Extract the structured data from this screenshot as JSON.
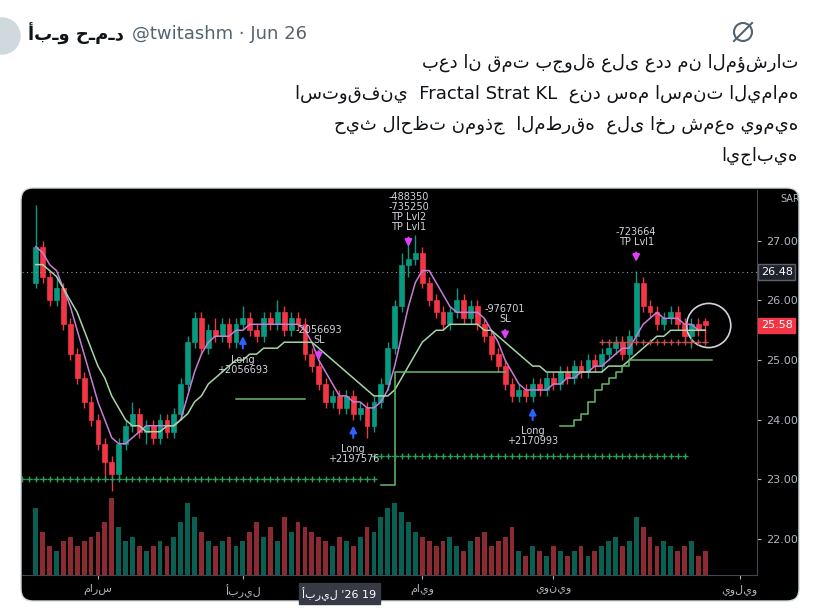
{
  "tweet": {
    "author": "أبـو حـمـد",
    "handle": "@twitashm · Jun 26",
    "text": [
      "بعد ان قمت بجولة على عدد من المؤشرات",
      "استوقفني  Fractal Strat KL  عند سهم اسمنت اليمامه",
      "حيث لاحظت نموذج  المطرقه  على اخر شمعه يوميه",
      "ايجابيه"
    ]
  },
  "chart_data": {
    "type": "candlestick",
    "unit_label": "SAR",
    "categories": [
      null,
      null,
      null,
      null,
      null,
      null,
      null,
      null,
      null,
      "مارس",
      null,
      null,
      null,
      null,
      null,
      null,
      null,
      null,
      null,
      null,
      null,
      null,
      null,
      null,
      null,
      null,
      null,
      null,
      null,
      null,
      "أبريل",
      null,
      null,
      null,
      null,
      null,
      null,
      null,
      null,
      null,
      null,
      null,
      null,
      null,
      null,
      null,
      null,
      null,
      null,
      null,
      null,
      null,
      null,
      null,
      null,
      null,
      "مايو",
      null,
      null,
      null,
      null,
      null,
      null,
      null,
      null,
      null,
      null,
      null,
      null,
      null,
      null,
      null,
      null,
      null,
      null,
      "يونيو",
      null,
      null,
      null,
      null,
      null,
      null,
      null,
      null,
      null,
      null,
      null,
      null,
      null,
      null,
      null,
      null,
      null,
      null,
      null,
      null,
      null,
      null,
      null,
      null,
      null,
      null,
      "يوليو"
    ],
    "open": [
      26.3,
      26.9,
      26.4,
      26.0,
      26.2,
      25.6,
      25.1,
      24.7,
      24.3,
      24.0,
      23.6,
      23.3,
      23.1,
      23.6,
      23.9,
      24.1,
      23.8,
      23.9,
      23.7,
      24.0,
      23.8,
      24.1,
      24.6,
      25.3,
      25.7,
      25.2,
      25.5,
      25.4,
      25.6,
      25.3,
      25.6,
      25.7,
      25.5,
      25.4,
      25.7,
      25.6,
      25.8,
      25.5,
      25.7,
      25.6,
      25.1,
      24.9,
      24.6,
      24.3,
      24.4,
      24.2,
      24.4,
      24.1,
      24.2,
      23.9,
      24.3,
      24.6,
      25.2,
      25.9,
      26.6,
      26.7,
      26.8,
      26.3,
      26.0,
      25.8,
      25.6,
      25.8,
      26.0,
      25.7,
      25.9,
      25.6,
      25.4,
      25.1,
      24.9,
      24.6,
      24.4,
      24.5,
      24.4,
      24.6,
      24.5,
      24.7,
      24.6,
      24.8,
      24.7,
      24.9,
      24.8,
      25.0,
      24.9,
      25.1,
      25.2,
      25.3,
      25.1,
      25.4,
      26.3,
      25.9,
      25.8,
      25.6,
      25.7,
      25.8,
      25.6,
      25.4,
      25.6,
      25.65,
      null,
      null,
      null,
      null,
      null
    ],
    "high": [
      27.6,
      27.0,
      26.5,
      26.4,
      26.3,
      25.7,
      25.2,
      24.8,
      24.4,
      24.1,
      23.7,
      23.4,
      23.7,
      24.0,
      24.3,
      24.2,
      24.0,
      24.0,
      24.1,
      24.1,
      24.2,
      24.7,
      25.4,
      25.8,
      25.8,
      25.6,
      25.7,
      25.7,
      25.7,
      25.7,
      25.9,
      25.8,
      25.6,
      25.8,
      25.8,
      26.0,
      25.9,
      25.8,
      25.8,
      25.7,
      25.2,
      25.0,
      24.7,
      24.5,
      24.5,
      24.5,
      24.5,
      24.3,
      24.3,
      24.4,
      24.7,
      25.3,
      26.0,
      26.8,
      27.0,
      27.1,
      26.9,
      26.4,
      26.1,
      25.9,
      25.9,
      26.2,
      26.1,
      26.0,
      26.0,
      25.7,
      25.5,
      25.2,
      25.0,
      24.7,
      24.6,
      24.6,
      24.7,
      24.7,
      24.8,
      24.8,
      24.9,
      24.9,
      25.0,
      25.0,
      25.1,
      25.1,
      25.2,
      25.3,
      25.4,
      25.4,
      25.5,
      26.5,
      26.4,
      26.0,
      25.9,
      25.8,
      25.9,
      25.9,
      25.7,
      25.7,
      25.7,
      25.7,
      null,
      null,
      null,
      null,
      null
    ],
    "low": [
      26.2,
      26.3,
      25.9,
      25.9,
      25.5,
      25.0,
      24.6,
      24.2,
      23.9,
      23.5,
      23.0,
      22.8,
      23.0,
      23.5,
      23.8,
      23.7,
      23.6,
      23.6,
      23.6,
      23.7,
      23.7,
      24.0,
      24.5,
      25.2,
      25.1,
      25.1,
      25.3,
      25.3,
      25.2,
      25.2,
      25.5,
      25.4,
      25.3,
      25.3,
      25.5,
      25.5,
      25.4,
      25.4,
      25.5,
      25.0,
      24.8,
      24.5,
      24.2,
      24.2,
      24.1,
      24.1,
      24.0,
      24.0,
      23.7,
      23.8,
      24.2,
      24.5,
      25.1,
      25.8,
      26.4,
      26.6,
      26.2,
      25.9,
      25.7,
      25.5,
      25.5,
      25.7,
      25.6,
      25.6,
      25.5,
      25.3,
      25.0,
      24.8,
      24.5,
      24.3,
      24.3,
      24.3,
      24.3,
      24.4,
      24.4,
      24.5,
      24.5,
      24.6,
      24.6,
      24.7,
      24.7,
      24.8,
      24.8,
      25.0,
      25.1,
      25.0,
      25.0,
      25.3,
      25.8,
      25.7,
      25.5,
      25.5,
      25.6,
      25.5,
      25.3,
      25.2,
      25.4,
      25.3,
      null,
      null,
      null,
      null,
      null
    ],
    "close": [
      26.9,
      26.4,
      26.0,
      26.2,
      25.6,
      25.1,
      24.7,
      24.3,
      24.0,
      23.6,
      23.3,
      23.1,
      23.6,
      23.9,
      24.1,
      23.8,
      23.9,
      23.7,
      24.0,
      23.8,
      24.1,
      24.6,
      25.3,
      25.7,
      25.2,
      25.5,
      25.4,
      25.6,
      25.3,
      25.6,
      25.7,
      25.5,
      25.4,
      25.7,
      25.6,
      25.8,
      25.5,
      25.7,
      25.6,
      25.1,
      24.9,
      24.6,
      24.3,
      24.4,
      24.2,
      24.4,
      24.1,
      24.2,
      23.9,
      24.3,
      24.6,
      25.2,
      25.9,
      26.6,
      26.7,
      26.8,
      26.3,
      26.0,
      25.8,
      25.6,
      25.8,
      26.0,
      25.7,
      25.9,
      25.6,
      25.4,
      25.1,
      24.9,
      24.6,
      24.4,
      24.5,
      24.4,
      24.6,
      24.5,
      24.7,
      24.6,
      24.8,
      24.7,
      24.9,
      24.8,
      25.0,
      24.9,
      25.1,
      25.2,
      25.3,
      25.1,
      25.4,
      26.3,
      25.9,
      25.8,
      25.6,
      25.7,
      25.8,
      25.6,
      25.4,
      25.6,
      25.5,
      25.58,
      null,
      null,
      null,
      null,
      null
    ],
    "volume": [
      70,
      45,
      30,
      25,
      35,
      40,
      30,
      35,
      40,
      45,
      55,
      80,
      50,
      35,
      40,
      30,
      25,
      30,
      35,
      30,
      40,
      55,
      75,
      60,
      45,
      35,
      30,
      35,
      40,
      30,
      35,
      45,
      55,
      40,
      50,
      35,
      60,
      45,
      55,
      50,
      45,
      40,
      35,
      30,
      40,
      35,
      30,
      40,
      50,
      45,
      60,
      70,
      75,
      65,
      55,
      45,
      40,
      35,
      30,
      35,
      40,
      30,
      25,
      35,
      40,
      45,
      30,
      35,
      40,
      50,
      25,
      20,
      30,
      25,
      20,
      30,
      25,
      20,
      25,
      30,
      20,
      25,
      30,
      35,
      40,
      30,
      35,
      60,
      50,
      40,
      30,
      35,
      30,
      25,
      30,
      35,
      20,
      25,
      null,
      null,
      null,
      null,
      null
    ],
    "lines": [
      {
        "color": "#c77dd7",
        "line_style": "solid",
        "values": [
          26.9,
          26.8,
          26.6,
          26.5,
          26.2,
          25.9,
          25.5,
          25.1,
          24.7,
          24.3,
          24.0,
          23.7,
          23.6,
          23.6,
          23.7,
          23.8,
          23.9,
          23.9,
          23.9,
          23.9,
          23.9,
          24.0,
          24.4,
          24.8,
          25.1,
          25.3,
          25.4,
          25.4,
          25.4,
          25.5,
          25.5,
          25.6,
          25.6,
          25.6,
          25.6,
          25.6,
          25.6,
          25.6,
          25.6,
          25.5,
          25.3,
          25.0,
          24.8,
          24.6,
          24.4,
          24.4,
          24.3,
          24.3,
          24.2,
          24.2,
          24.3,
          24.5,
          24.9,
          25.4,
          25.9,
          26.3,
          26.5,
          26.5,
          26.3,
          26.1,
          25.9,
          25.8,
          25.8,
          25.8,
          25.8,
          25.7,
          25.5,
          25.3,
          25.0,
          24.8,
          24.6,
          24.5,
          24.5,
          24.5,
          24.5,
          24.6,
          24.6,
          24.7,
          24.7,
          24.8,
          24.8,
          24.9,
          24.9,
          25.0,
          25.1,
          25.2,
          25.2,
          25.4,
          25.6,
          25.7,
          25.8,
          25.7,
          25.7,
          25.7,
          25.6,
          25.6,
          25.5,
          25.5,
          null,
          null,
          null,
          null,
          null
        ]
      },
      {
        "color": "#a5d6a7",
        "line_style": "solid",
        "values": [
          26.6,
          26.6,
          26.5,
          26.4,
          26.2,
          26.0,
          25.8,
          25.5,
          25.2,
          24.9,
          24.7,
          24.4,
          24.2,
          24.0,
          23.9,
          23.9,
          23.8,
          23.8,
          23.8,
          23.9,
          23.9,
          24.0,
          24.1,
          24.3,
          24.4,
          24.6,
          24.7,
          24.8,
          24.9,
          25.0,
          25.0,
          25.1,
          25.1,
          25.2,
          25.2,
          25.2,
          25.3,
          25.3,
          25.3,
          25.3,
          25.3,
          25.2,
          25.1,
          25.0,
          24.9,
          24.8,
          24.7,
          24.6,
          24.5,
          24.4,
          24.4,
          24.4,
          24.5,
          24.7,
          24.9,
          25.1,
          25.3,
          25.4,
          25.5,
          25.5,
          25.6,
          25.6,
          25.6,
          25.6,
          25.6,
          25.5,
          25.5,
          25.4,
          25.3,
          25.2,
          25.1,
          25.0,
          24.9,
          24.9,
          24.8,
          24.8,
          24.8,
          24.8,
          24.8,
          24.8,
          24.8,
          24.8,
          24.8,
          24.9,
          24.9,
          24.9,
          25.0,
          25.1,
          25.2,
          25.3,
          25.4,
          25.4,
          25.5,
          25.5,
          25.5,
          25.5,
          25.5,
          25.5,
          null,
          null,
          null,
          null,
          null
        ]
      },
      {
        "color": "#66bb6a",
        "line_style": "steps",
        "values": [
          null,
          null,
          null,
          null,
          null,
          null,
          null,
          null,
          null,
          null,
          null,
          null,
          null,
          null,
          null,
          null,
          null,
          null,
          null,
          null,
          null,
          null,
          null,
          null,
          null,
          null,
          null,
          null,
          null,
          24.35,
          24.35,
          24.35,
          24.35,
          24.35,
          24.35,
          24.35,
          24.35,
          24.35,
          24.35,
          null,
          null,
          null,
          null,
          null,
          null,
          null,
          null,
          null,
          null,
          null,
          22.9,
          22.9,
          24.8,
          24.8,
          24.8,
          24.8,
          24.8,
          24.8,
          24.8,
          24.8,
          24.8,
          24.8,
          24.8,
          24.8,
          24.8,
          24.8,
          24.8,
          24.8,
          null,
          null,
          null,
          null,
          null,
          null,
          null,
          null,
          23.9,
          23.9,
          24.0,
          24.1,
          24.3,
          24.5,
          24.6,
          24.7,
          24.8,
          24.9,
          25.0,
          25.0,
          25.0,
          25.0,
          25.0,
          25.0,
          25.0,
          25.0,
          25.0,
          25.0,
          25.0,
          25.0,
          null,
          null,
          null,
          null,
          null
        ]
      }
    ],
    "levels": [
      {
        "value": 23.0,
        "from": -2,
        "to": 49,
        "color": "#2e9e5b",
        "line_style": "dotted",
        "marker": "plus"
      },
      {
        "value": 23.4,
        "from": 49,
        "to": 94,
        "color": "#2e9e5b",
        "line_style": "dotted",
        "marker": "plus"
      },
      {
        "value": 25.3,
        "from": 82,
        "to": 97,
        "color": "#c0504d",
        "line_style": "dotted",
        "marker": "plus"
      }
    ],
    "signals": [
      {
        "type": "long",
        "x": 30,
        "price": 25.45,
        "lines": [
          "Long",
          "+2056693"
        ]
      },
      {
        "type": "exit",
        "x": 41,
        "price": 24.95,
        "lines": [
          "-2056693",
          "SL"
        ]
      },
      {
        "type": "long",
        "x": 46,
        "price": 23.95,
        "lines": [
          "Long",
          "+2197576"
        ]
      },
      {
        "type": "exit",
        "x": 54,
        "price": 26.85,
        "lines": [
          "-488350",
          "-735250",
          "TP Lvl2",
          "TP Lvl1"
        ]
      },
      {
        "type": "exit",
        "x": 68,
        "price": 25.3,
        "lines": [
          "-976701",
          "SL"
        ]
      },
      {
        "type": "long",
        "x": 72,
        "price": 24.25,
        "lines": [
          "Long",
          "+2170993"
        ]
      },
      {
        "type": "exit",
        "x": 87,
        "price": 26.6,
        "lines": [
          "-723664",
          "TP Lvl1"
        ]
      }
    ],
    "crosshair": {
      "x": 44,
      "x_label": "أبريل '26 19",
      "y": 26.48
    },
    "last_price": {
      "value": 25.58,
      "color": "#f23645"
    },
    "xlim": [
      -2,
      104.5
    ],
    "ylim": [
      21.4,
      27.85
    ],
    "yticks": [
      {
        "value": 22,
        "label": "22.00"
      },
      {
        "value": 23,
        "label": "23.00"
      },
      {
        "value": 24,
        "label": "24.00"
      },
      {
        "value": 25,
        "label": "25.00"
      },
      {
        "value": 26,
        "label": "26.00"
      },
      {
        "value": 27,
        "label": "27.00"
      }
    ],
    "y2lim": [
      0,
      400
    ]
  }
}
